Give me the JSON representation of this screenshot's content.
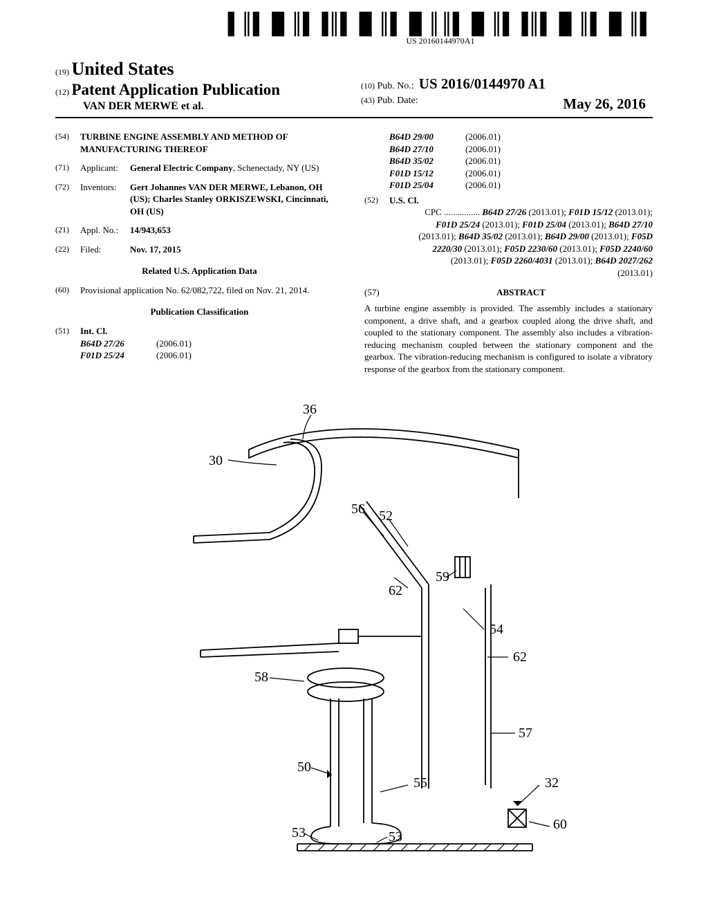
{
  "barcode_number": "US 20160144970A1",
  "header": {
    "country_code": "(19)",
    "country": "United States",
    "doc_code": "(12)",
    "doc_type": "Patent Application Publication",
    "authors": "VAN DER MERWE et al.",
    "pubno_code": "(10)",
    "pubno_label": "Pub. No.:",
    "pubno_value": "US 2016/0144970 A1",
    "pubdate_code": "(43)",
    "pubdate_label": "Pub. Date:",
    "pubdate_value": "May 26, 2016"
  },
  "left": {
    "title_code": "(54)",
    "title": "TURBINE ENGINE ASSEMBLY AND METHOD OF MANUFACTURING THEREOF",
    "applicant_code": "(71)",
    "applicant_label": "Applicant:",
    "applicant_value_bold": "General Electric Company",
    "applicant_value_rest": ", Schenectady, NY (US)",
    "inventors_code": "(72)",
    "inventors_label": "Inventors:",
    "inventors_value": "Gert Johannes VAN DER MERWE, Lebanon, OH (US); Charles Stanley ORKISZEWSKI, Cincinnati, OH (US)",
    "appl_code": "(21)",
    "appl_label": "Appl. No.:",
    "appl_value": "14/943,653",
    "filed_code": "(22)",
    "filed_label": "Filed:",
    "filed_value": "Nov. 17, 2015",
    "related_head": "Related U.S. Application Data",
    "prov_code": "(60)",
    "prov_text": "Provisional application No. 62/082,722, filed on Nov. 21, 2014.",
    "pubclass_head": "Publication Classification",
    "intcl_code": "(51)",
    "intcl_label": "Int. Cl.",
    "intcl": [
      {
        "code": "B64D 27/26",
        "year": "(2006.01)"
      },
      {
        "code": "F01D 25/24",
        "year": "(2006.01)"
      }
    ]
  },
  "right": {
    "intcl_cont": [
      {
        "code": "B64D 29/00",
        "year": "(2006.01)"
      },
      {
        "code": "B64D 27/10",
        "year": "(2006.01)"
      },
      {
        "code": "B64D 35/02",
        "year": "(2006.01)"
      },
      {
        "code": "F01D 15/12",
        "year": "(2006.01)"
      },
      {
        "code": "F01D 25/04",
        "year": "(2006.01)"
      }
    ],
    "uscl_code": "(52)",
    "uscl_label": "U.S. Cl.",
    "cpc_prefix": "CPC ................",
    "cpc_text": "B64D 27/26 (2013.01); F01D 15/12 (2013.01); F01D 25/24 (2013.01); F01D 25/04 (2013.01); B64D 27/10 (2013.01); B64D 35/02 (2013.01); B64D 29/00 (2013.01); F05D 2220/30 (2013.01); F05D 2230/60 (2013.01); F05D 2240/60 (2013.01); F05D 2260/4031 (2013.01); B64D 2027/262 (2013.01)",
    "abstract_code": "(57)",
    "abstract_head": "ABSTRACT",
    "abstract_body": "A turbine engine assembly is provided. The assembly includes a stationary component, a drive shaft, and a gearbox coupled along the drive shaft, and coupled to the stationary component. The assembly also includes a vibration-reducing mechanism coupled between the stationary component and the gearbox. The vibration-reducing mechanism is configured to isolate a vibratory response of the gearbox from the stationary component."
  },
  "figure_labels": [
    "36",
    "30",
    "56",
    "52",
    "62",
    "59",
    "54",
    "62",
    "58",
    "57",
    "50",
    "55",
    "32",
    "53",
    "53",
    "60"
  ],
  "colors": {
    "text": "#000000",
    "background": "#ffffff",
    "rule": "#000000"
  }
}
